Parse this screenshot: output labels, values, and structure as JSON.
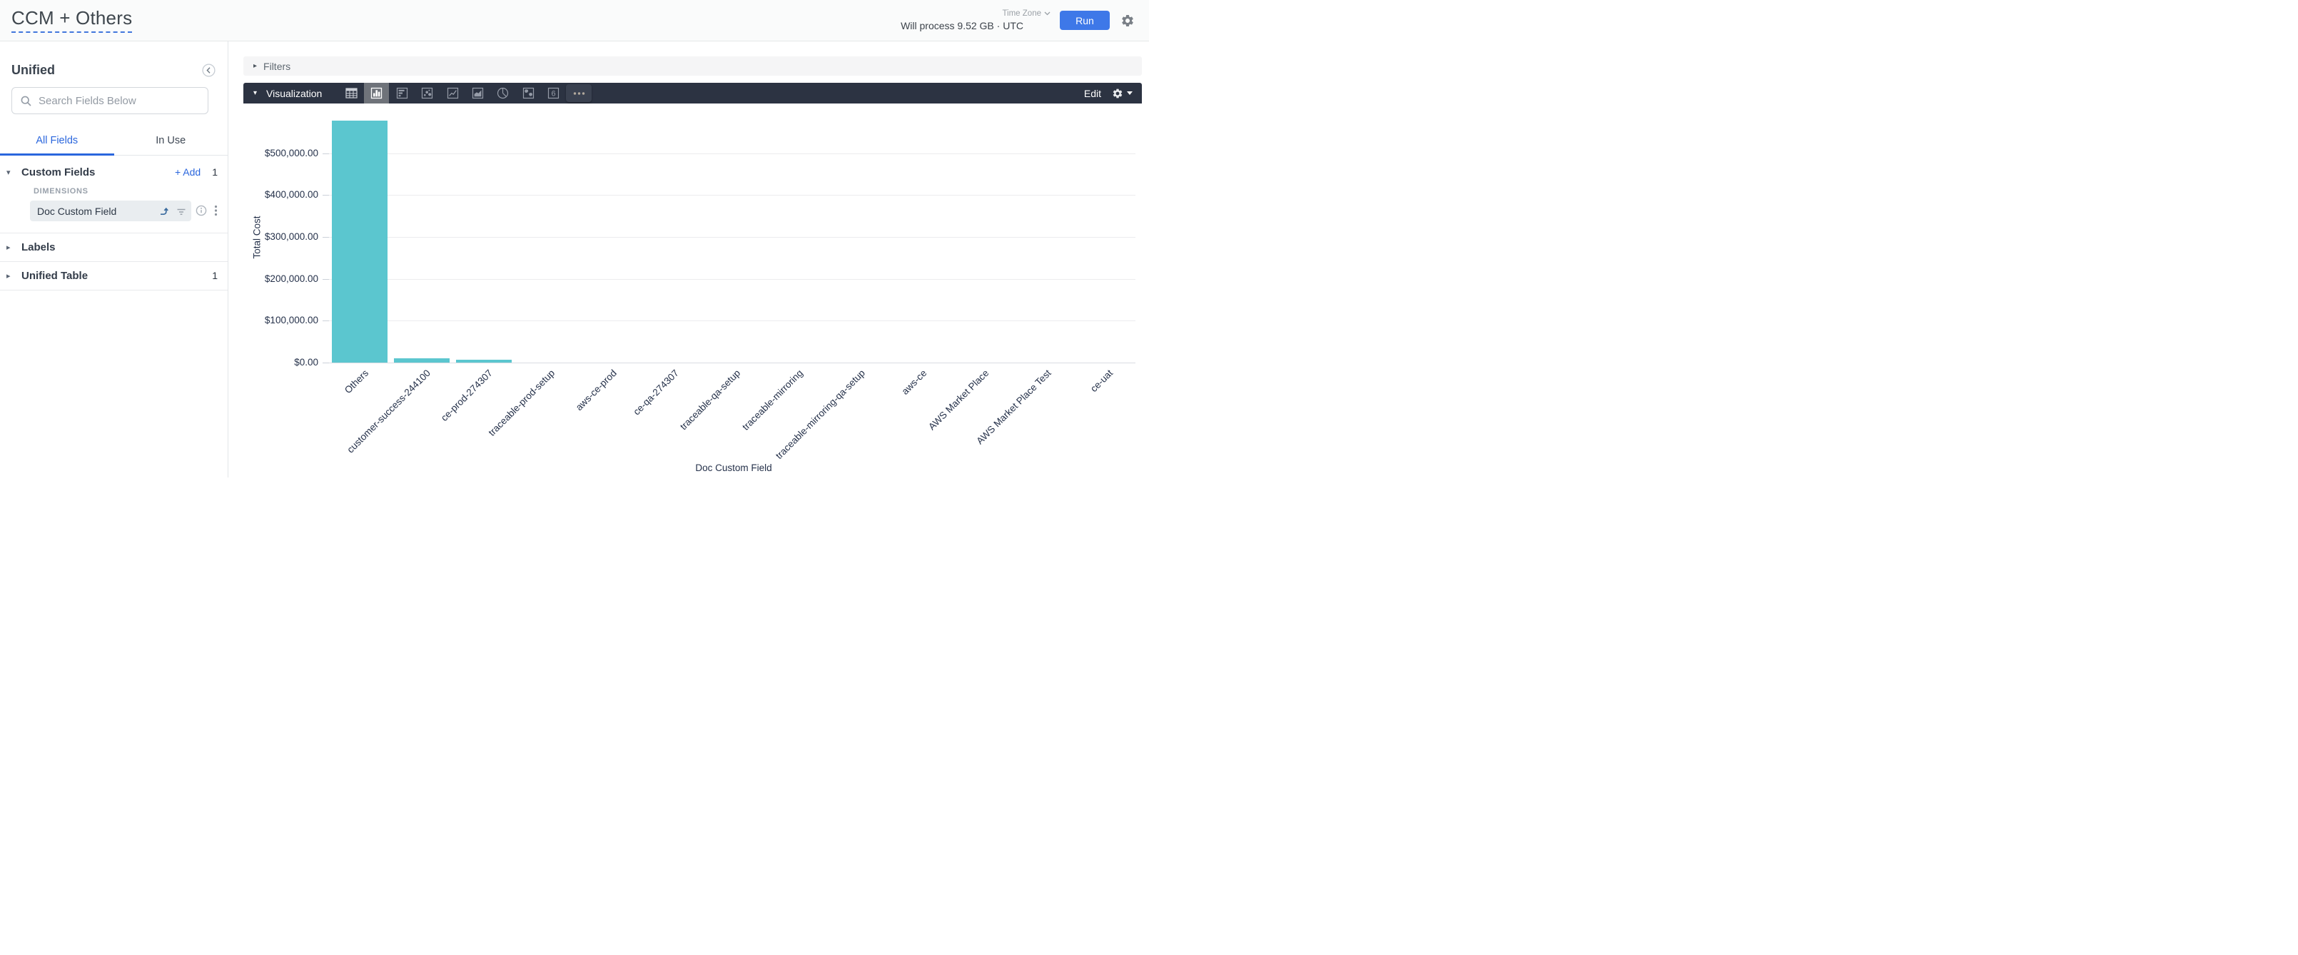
{
  "header": {
    "title": "CCM + Others",
    "time_zone_label": "Time Zone",
    "process_info": "Will process 9.52 GB · UTC",
    "run_label": "Run"
  },
  "sidebar": {
    "title": "Unified",
    "search_placeholder": "Search Fields Below",
    "tabs": [
      {
        "label": "All Fields"
      },
      {
        "label": "In Use"
      }
    ],
    "custom_fields": {
      "label": "Custom Fields",
      "add_label": "+ Add",
      "count": "1",
      "group_label": "DIMENSIONS",
      "fields": [
        {
          "label": "Doc Custom Field"
        }
      ]
    },
    "labels_section": {
      "label": "Labels"
    },
    "unified_table_section": {
      "label": "Unified Table",
      "count": "1"
    }
  },
  "filters": {
    "label": "Filters"
  },
  "viz": {
    "label": "Visualization",
    "edit_label": "Edit",
    "single_value_glyph": "6",
    "icons": [
      {
        "name": "table",
        "active": false
      },
      {
        "name": "column",
        "active": true
      },
      {
        "name": "bar",
        "active": false
      },
      {
        "name": "scatter",
        "active": false
      },
      {
        "name": "line",
        "active": false
      },
      {
        "name": "area",
        "active": false
      },
      {
        "name": "pie",
        "active": false
      },
      {
        "name": "map",
        "active": false
      },
      {
        "name": "single-value",
        "active": false
      },
      {
        "name": "more",
        "active": false
      }
    ]
  },
  "chart_data": {
    "type": "bar",
    "title": "",
    "xlabel": "Doc Custom Field",
    "ylabel": "Total Cost",
    "categories": [
      "Others",
      "customer-success-244100",
      "ce-prod-274307",
      "traceable-prod-setup",
      "aws-ce-prod",
      "ce-qa-274307",
      "traceable-qa-setup",
      "traceable-mirroring",
      "traceable-mirroring-qa-setup",
      "aws-ce",
      "AWS Market Place",
      "AWS Market Place Test",
      "ce-uat"
    ],
    "values": [
      578000,
      10200,
      6500,
      0,
      0,
      0,
      0,
      0,
      0,
      0,
      0,
      0,
      0
    ],
    "yticks": [
      0,
      100000,
      200000,
      300000,
      400000,
      500000
    ],
    "ylim": [
      0,
      600000
    ],
    "ytick_format": "$#,##0.00",
    "grid": true,
    "legend": "none",
    "bar_color": "#5bc6cf"
  },
  "colors": {
    "accent_blue": "#2a66dd",
    "run_button": "#3e78e8",
    "toolbar_bg": "#2c3342",
    "bar_teal": "#5bc6cf"
  }
}
